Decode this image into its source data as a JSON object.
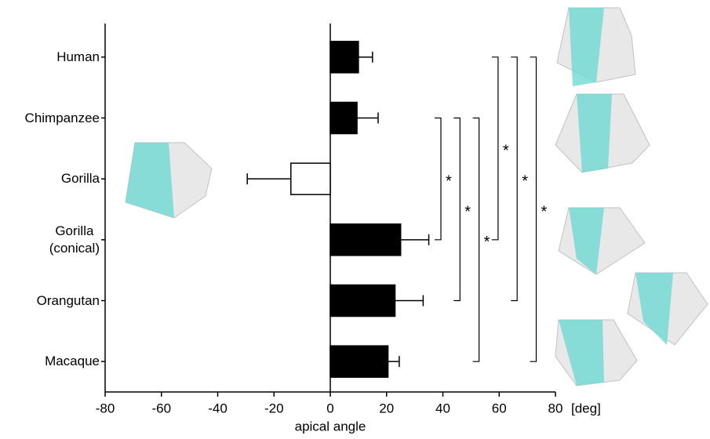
{
  "chart_data": {
    "type": "hbar",
    "categories": [
      "Human",
      "Chimpanzee",
      "Gorilla",
      "Gorilla\n(conical)",
      "Orangutan",
      "Macaque"
    ],
    "values": [
      10,
      9.5,
      -14,
      25,
      23,
      20.5
    ],
    "errors": [
      5,
      7.5,
      15.5,
      10,
      10,
      4
    ],
    "colors": [
      "#000000",
      "#000000",
      "#ffffff",
      "#000000",
      "#000000",
      "#000000"
    ],
    "xlim": [
      -80,
      80
    ],
    "xticks": [
      -80,
      -60,
      -40,
      -20,
      0,
      20,
      40,
      60,
      80
    ],
    "xlabel": "apical angle",
    "xunit": "[deg]",
    "significance": [
      {
        "from": 1,
        "to": 3,
        "label": "*"
      },
      {
        "from": 1,
        "to": 4,
        "label": "*"
      },
      {
        "from": 1,
        "to": 5,
        "label": "*"
      },
      {
        "from": 0,
        "to": 3,
        "label": "*"
      },
      {
        "from": 0,
        "to": 4,
        "label": "*"
      },
      {
        "from": 0,
        "to": 5,
        "label": "*"
      }
    ]
  }
}
